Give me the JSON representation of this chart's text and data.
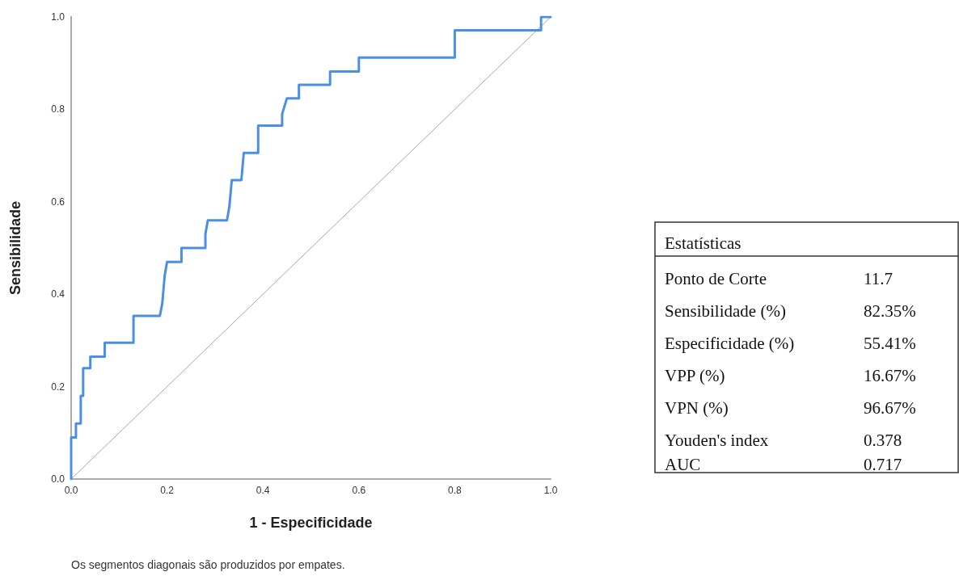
{
  "chart_data": {
    "type": "line",
    "xlabel": "1 - Especificidade",
    "ylabel": "Sensibilidade",
    "xlim": [
      0,
      1
    ],
    "ylim": [
      0,
      1
    ],
    "xticks": [
      {
        "value": 0,
        "label": "0.0"
      },
      {
        "value": 0.2,
        "label": "0.2"
      },
      {
        "value": 0.4,
        "label": "0.4"
      },
      {
        "value": 0.6,
        "label": "0.6"
      },
      {
        "value": 0.8,
        "label": "0.8"
      },
      {
        "value": 1,
        "label": "1.0"
      }
    ],
    "yticks": [
      {
        "value": 0,
        "label": "0.0"
      },
      {
        "value": 0.2,
        "label": "0.2"
      },
      {
        "value": 0.4,
        "label": "0.4"
      },
      {
        "value": 0.6,
        "label": "0.6"
      },
      {
        "value": 0.8,
        "label": "0.8"
      },
      {
        "value": 1,
        "label": "1.0"
      }
    ],
    "grid": false,
    "marker": "none",
    "line_style": "solid",
    "series": [
      {
        "color": "#4a90e2",
        "x": [
          0,
          0,
          0.01,
          0.01,
          0.02,
          0.02,
          0.025,
          0.025,
          0.04,
          0.04,
          0.07,
          0.07,
          0.13,
          0.13,
          0.185,
          0.19,
          0.195,
          0.2,
          0.23,
          0.23,
          0.28,
          0.28,
          0.285,
          0.325,
          0.33,
          0.335,
          0.355,
          0.36,
          0.39,
          0.39,
          0.44,
          0.44,
          0.45,
          0.475,
          0.475,
          0.54,
          0.54,
          0.6,
          0.6,
          0.8,
          0.8,
          0.98,
          0.98,
          1
        ],
        "values": [
          0,
          0.09,
          0.09,
          0.12,
          0.12,
          0.18,
          0.18,
          0.24,
          0.24,
          0.265,
          0.265,
          0.295,
          0.295,
          0.353,
          0.353,
          0.38,
          0.44,
          0.47,
          0.47,
          0.5,
          0.5,
          0.53,
          0.56,
          0.56,
          0.59,
          0.647,
          0.647,
          0.706,
          0.706,
          0.765,
          0.765,
          0.79,
          0.824,
          0.824,
          0.853,
          0.853,
          0.882,
          0.882,
          0.912,
          0.912,
          0.971,
          0.971,
          1,
          1
        ]
      },
      {
        "color": "#a6a6a6",
        "x": [
          0,
          1
        ],
        "values": [
          0,
          1
        ]
      }
    ],
    "annotations": [
      "Os segmentos diagonais são produzidos por empates.",
      "Estatísticas",
      "Ponto de Corte",
      "11.7",
      "Sensibilidade (%)",
      "82.35%",
      "Especificidade (%)",
      "55.41%",
      "VPP (%)",
      "16.67%",
      "VPN (%)",
      "96.67%",
      "Youden's index",
      "0.378",
      "AUC",
      "0.717"
    ]
  }
}
